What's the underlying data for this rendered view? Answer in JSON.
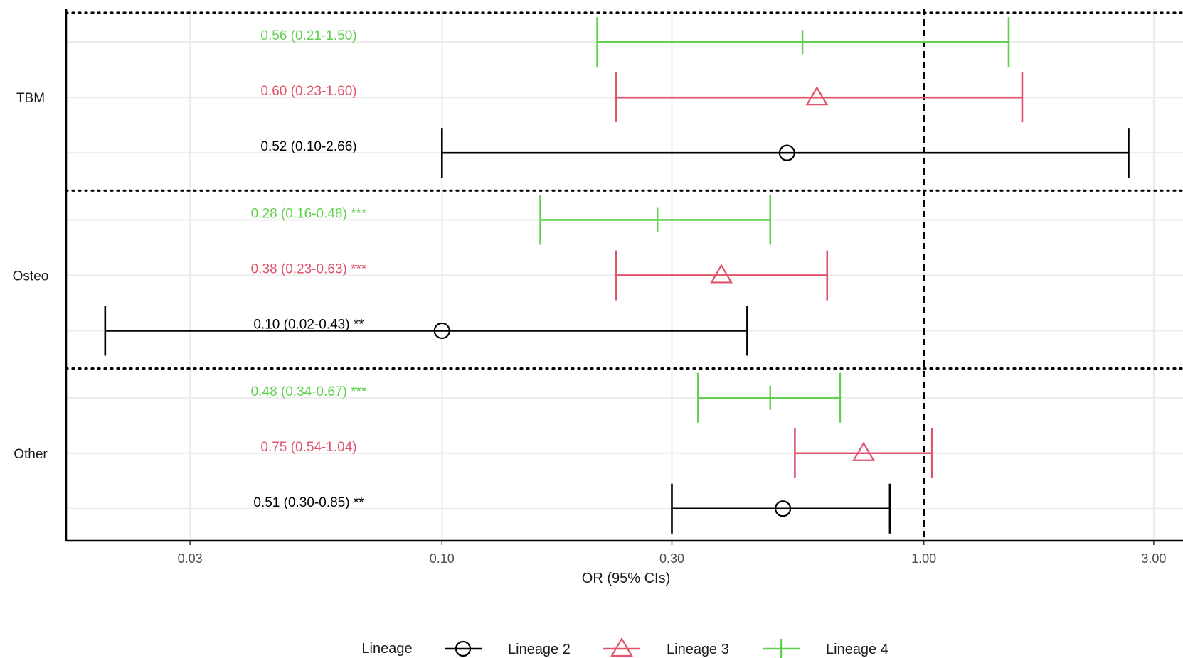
{
  "chart_data": {
    "type": "forest",
    "xscale": "log",
    "xlim": [
      0.0166,
      3.45
    ],
    "x_ticks": [
      0.03,
      0.1,
      0.3,
      1.0,
      3.0
    ],
    "x_tick_labels": [
      "0.03",
      "0.10",
      "0.30",
      "1.00",
      "3.00"
    ],
    "xlabel": "OR (95% CIs)",
    "reference_line": 1.0,
    "groups": [
      "TBM",
      "Osteo",
      "Other"
    ],
    "legend": {
      "title": "Lineage",
      "position": "bottom",
      "items": [
        {
          "label": "Lineage 2",
          "color": "#000000",
          "shape": "circle"
        },
        {
          "label": "Lineage 3",
          "color": "#DF536B",
          "shape": "triangle"
        },
        {
          "label": "Lineage 4",
          "color": "#61D04F",
          "shape": "plus"
        }
      ]
    },
    "series": [
      {
        "name": "Lineage 4",
        "color": "#61D04F",
        "shape": "plus",
        "points": [
          {
            "group": "TBM",
            "or": 0.56,
            "lo": 0.21,
            "hi": 1.5,
            "label": "0.56 (0.21-1.50)"
          },
          {
            "group": "Osteo",
            "or": 0.28,
            "lo": 0.16,
            "hi": 0.48,
            "label": "0.28 (0.16-0.48) ***"
          },
          {
            "group": "Other",
            "or": 0.48,
            "lo": 0.34,
            "hi": 0.67,
            "label": "0.48 (0.34-0.67) ***"
          }
        ]
      },
      {
        "name": "Lineage 3",
        "color": "#DF536B",
        "shape": "triangle",
        "points": [
          {
            "group": "TBM",
            "or": 0.6,
            "lo": 0.23,
            "hi": 1.6,
            "label": "0.60 (0.23-1.60)"
          },
          {
            "group": "Osteo",
            "or": 0.38,
            "lo": 0.23,
            "hi": 0.63,
            "label": "0.38 (0.23-0.63) ***"
          },
          {
            "group": "Other",
            "or": 0.75,
            "lo": 0.54,
            "hi": 1.04,
            "label": "0.75 (0.54-1.04)"
          }
        ]
      },
      {
        "name": "Lineage 2",
        "color": "#000000",
        "shape": "circle",
        "points": [
          {
            "group": "TBM",
            "or": 0.52,
            "lo": 0.1,
            "hi": 2.66,
            "label": "0.52 (0.10-2.66)"
          },
          {
            "group": "Osteo",
            "or": 0.1,
            "lo": 0.02,
            "hi": 0.43,
            "label": "0.10 (0.02-0.43) **"
          },
          {
            "group": "Other",
            "or": 0.51,
            "lo": 0.3,
            "hi": 0.85,
            "label": "0.51 (0.30-0.85) **"
          }
        ]
      }
    ]
  }
}
